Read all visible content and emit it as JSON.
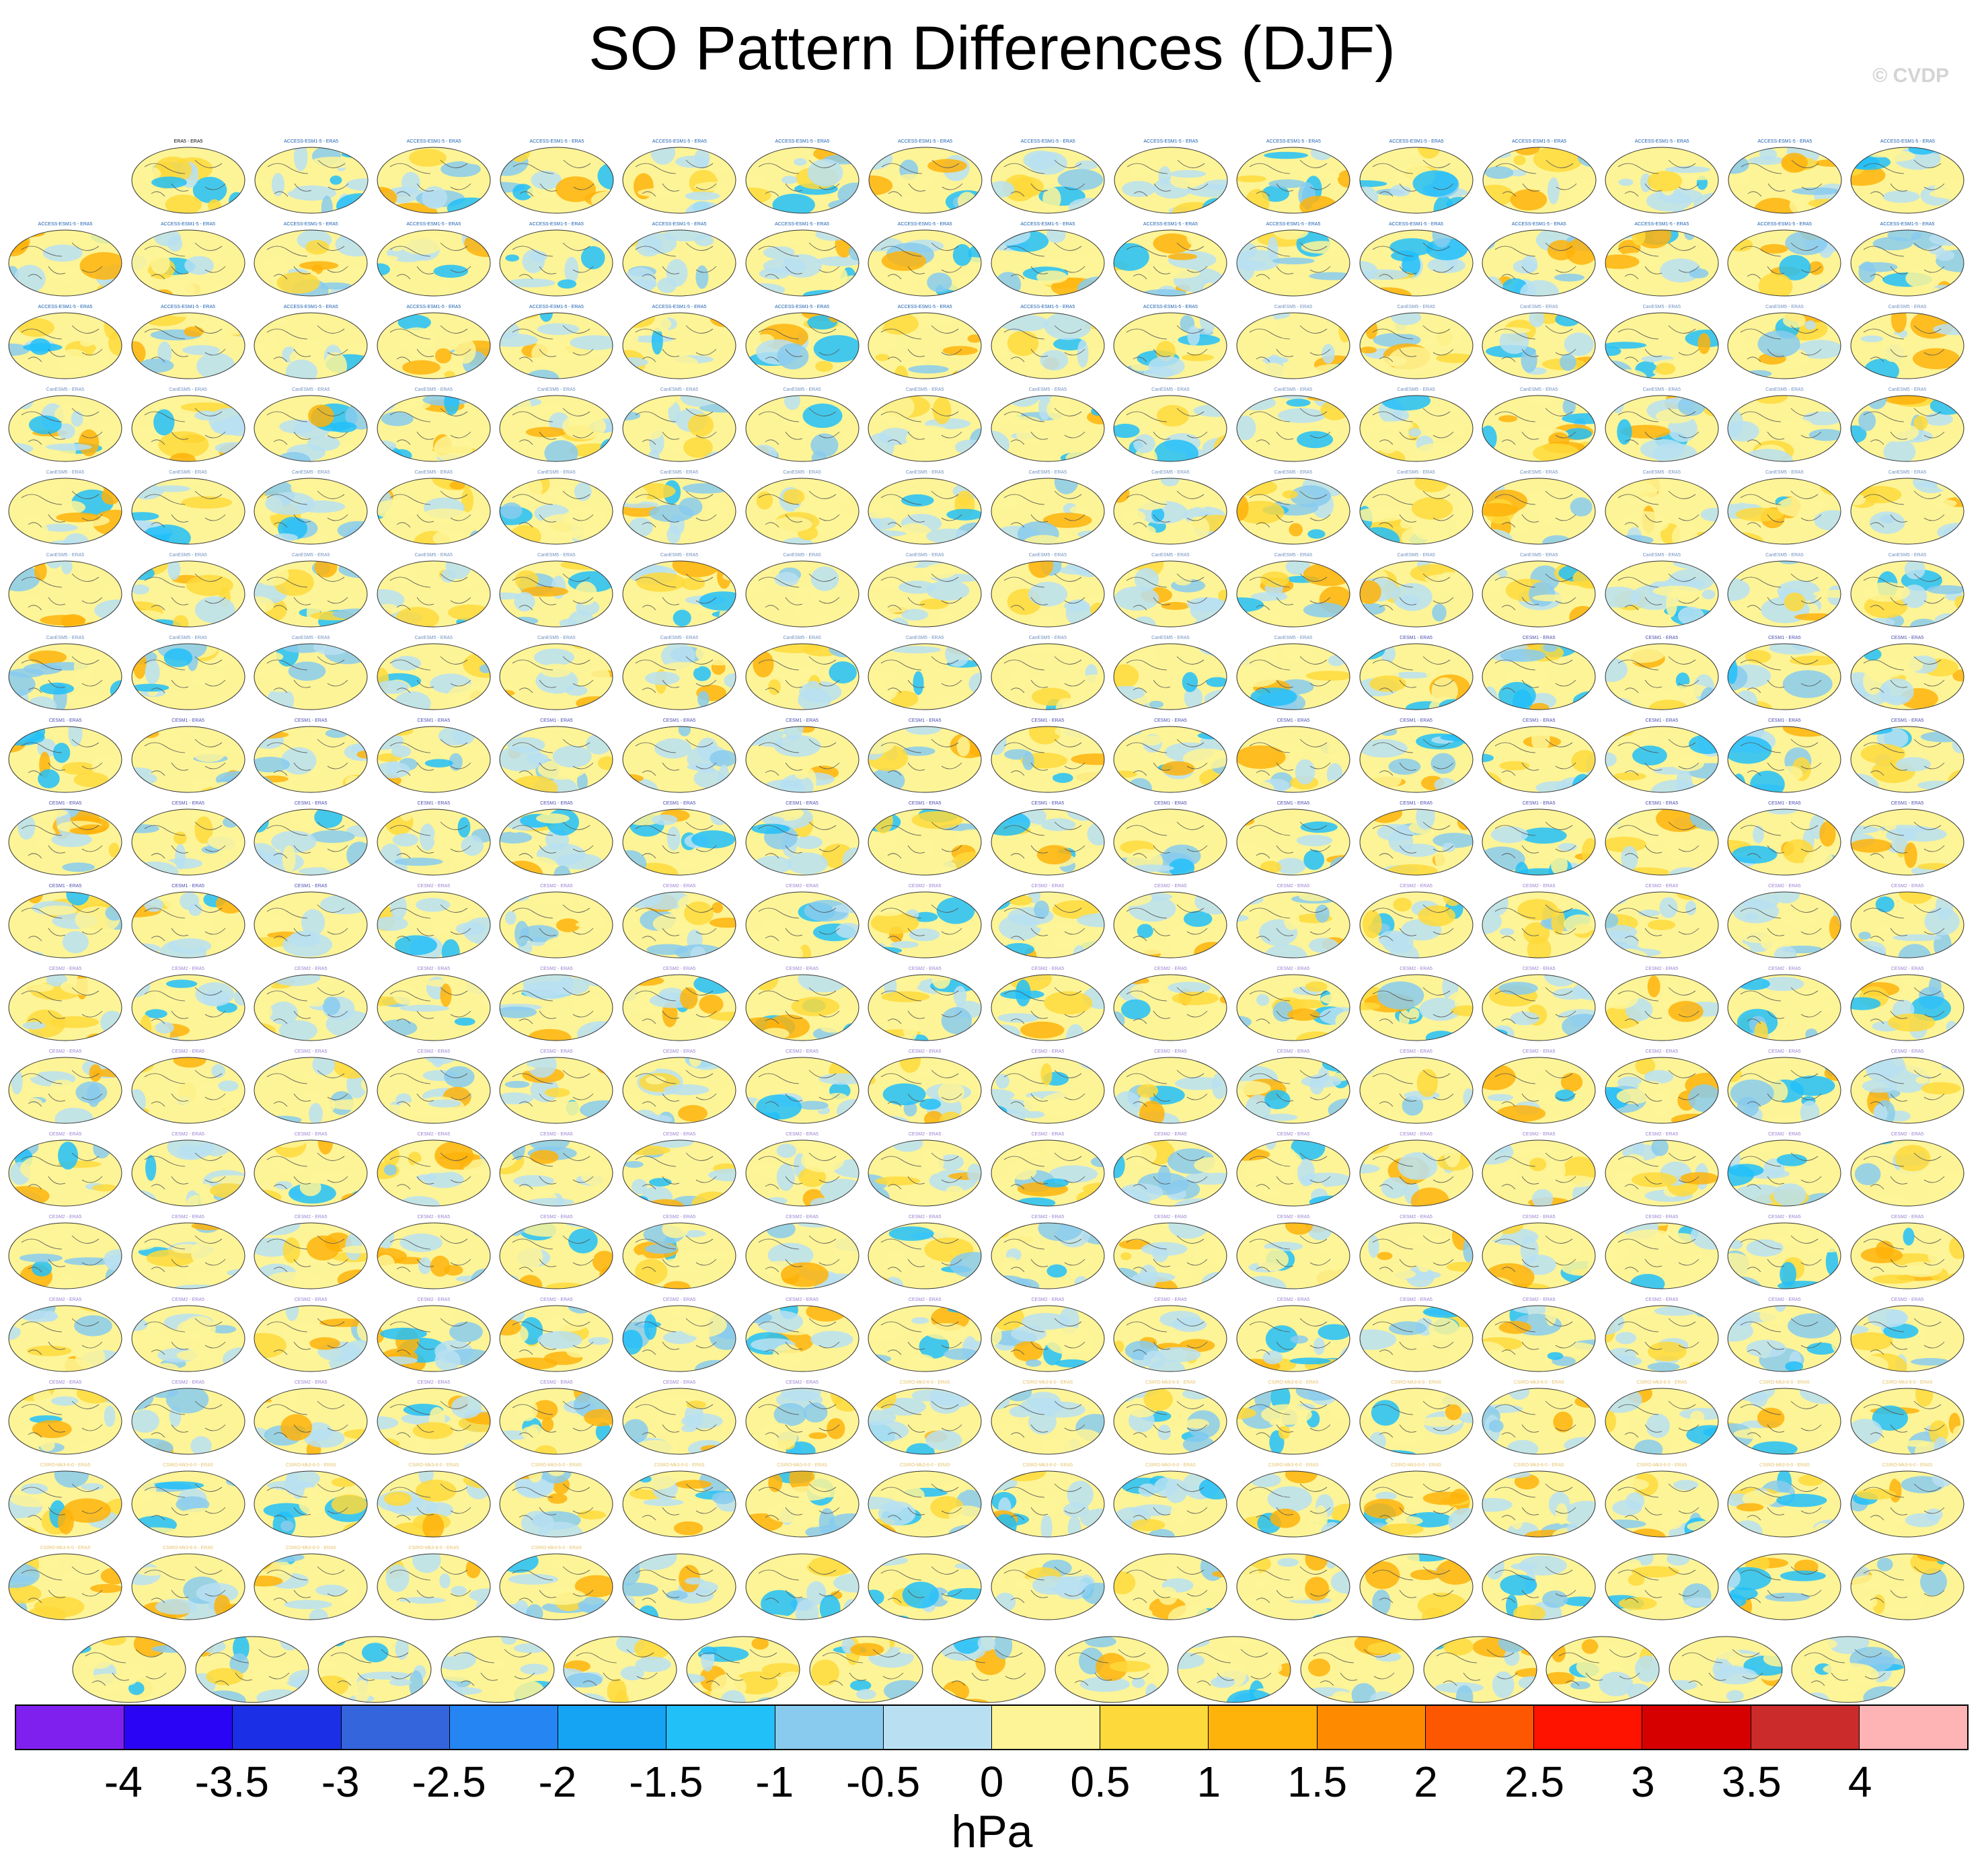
{
  "title": "SO Pattern Differences (DJF)",
  "watermark": "© CVDP",
  "colorbar": {
    "unit": "hPa",
    "ticks": [
      "-4",
      "-3.5",
      "-3",
      "-2.5",
      "-2",
      "-1.5",
      "-1",
      "-0.5",
      "0",
      "0.5",
      "1",
      "1.5",
      "2",
      "2.5",
      "3",
      "3.5",
      "4"
    ],
    "colors": [
      "#8020ee",
      "#2a05f5",
      "#1b2fe6",
      "#3565dc",
      "#2585f3",
      "#15a3f4",
      "#22c0f9",
      "#88cbee",
      "#b8e0f2",
      "#fdf497",
      "#fed93b",
      "#feb30b",
      "#fe8a00",
      "#fe5702",
      "#fe1200",
      "#d70000",
      "#cc2b2b",
      "#feb3b4"
    ]
  },
  "maps": {
    "row_counts": [
      15,
      16,
      16,
      16,
      16,
      16,
      16,
      16,
      16,
      16,
      16,
      16,
      16,
      16,
      16,
      16,
      16,
      16,
      15
    ],
    "first_label": "ERA5 - ERA5",
    "label_groups": [
      {
        "model": "ACCESS-ESM1-5",
        "count": 40,
        "color": "#1a5fb0"
      },
      {
        "model": "CanESM5",
        "count": 65,
        "color": "#6f8fbf"
      },
      {
        "model": "CESM1",
        "count": 40,
        "color": "#4a4ab0"
      },
      {
        "model": "CESM2",
        "count": 100,
        "color": "#9a7fd0"
      },
      {
        "model": "CSIRO-Mk3-6-0",
        "count": 30,
        "color": "#e7c36a"
      }
    ]
  }
}
